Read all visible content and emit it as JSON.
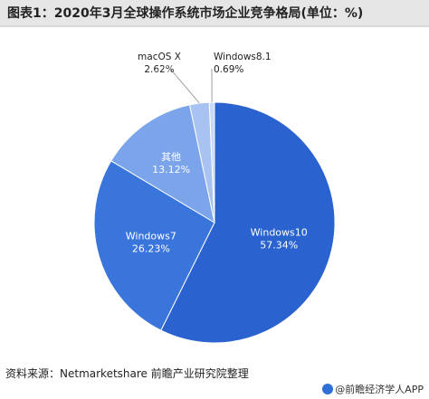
{
  "title": "图表1：2020年3月全球操作系统市场企业竞争格局(单位：%)",
  "source": "资料来源：Netmarketshare 前瞻产业研究院整理",
  "brand": "@前瞻经济学人APP",
  "colors": {
    "Windows10": "#2a63cf",
    "Windows7": "#3a75dc",
    "其他": "#7ba4ea",
    "macOS X": "#a8c3f2",
    "Windows8.1": "#c9daf8"
  },
  "chart_data": {
    "type": "pie",
    "title": "图表1：2020年3月全球操作系统市场企业竞争格局(单位：%)",
    "categories": [
      "Windows10",
      "Windows7",
      "其他",
      "macOS X",
      "Windows8.1"
    ],
    "values": [
      57.34,
      26.23,
      13.12,
      2.62,
      0.69
    ],
    "value_labels": [
      "57.34%",
      "26.23%",
      "13.12%",
      "2.62%",
      "0.69%"
    ]
  }
}
